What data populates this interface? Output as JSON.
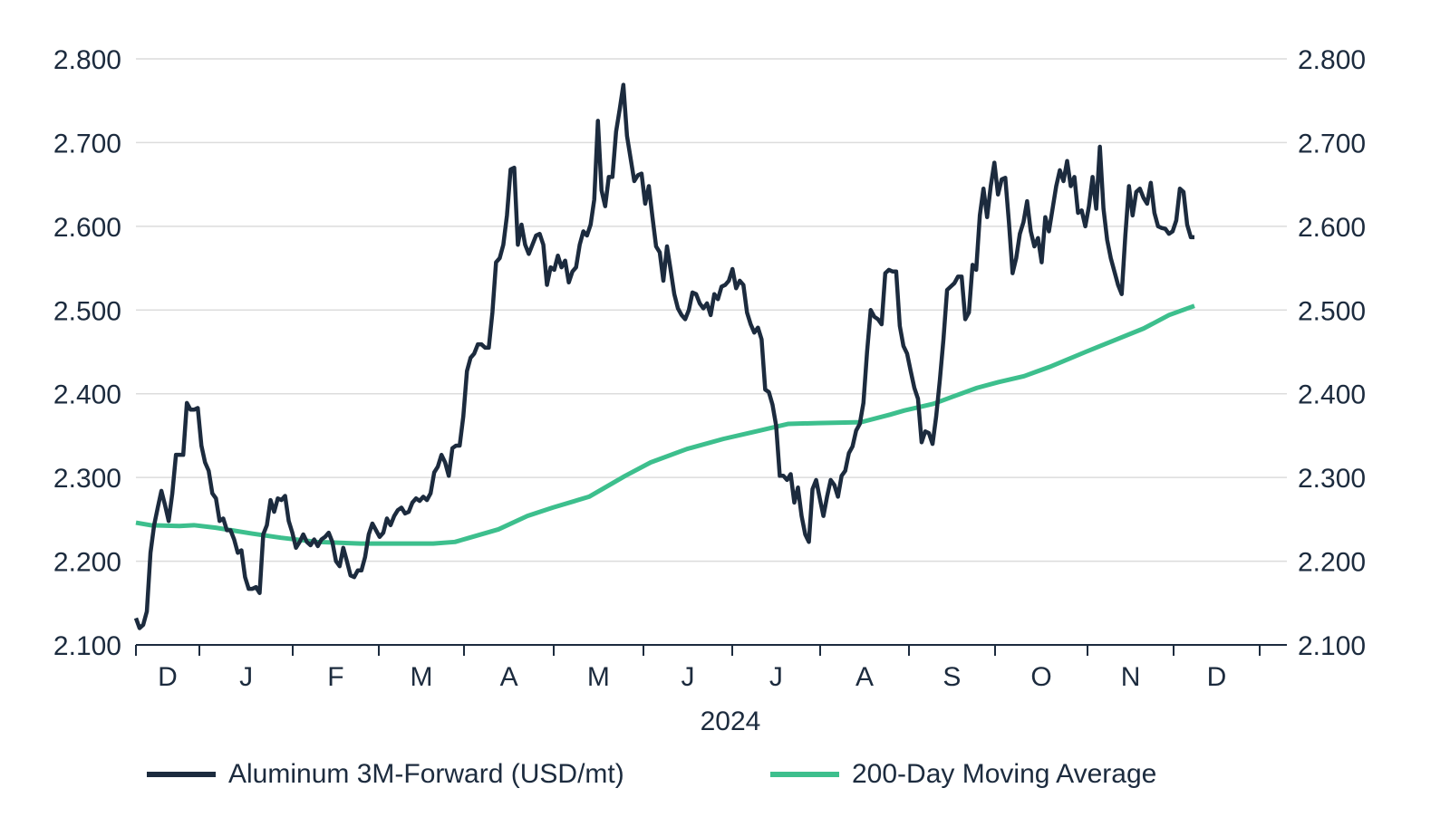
{
  "chart_data": {
    "type": "line",
    "title": "",
    "xlabel": "2024",
    "ylabel": "",
    "ylim": [
      2100,
      2800
    ],
    "y_ticks": [
      "2.100",
      "2.200",
      "2.300",
      "2.400",
      "2.500",
      "2.600",
      "2.700",
      "2.800"
    ],
    "y_tick_values": [
      2100,
      2200,
      2300,
      2400,
      2500,
      2600,
      2700,
      2800
    ],
    "x_unit": "approx. trading-day index from chart start",
    "xlim": [
      0,
      310
    ],
    "x_ticks": [
      17.5,
      43.25,
      67,
      90.5,
      115.25,
      140,
      164.5,
      188.75,
      213.25,
      237,
      262.5,
      286.25,
      310
    ],
    "x_tick_labels": [
      "D",
      "J",
      "F",
      "M",
      "A",
      "M",
      "J",
      "J",
      "A",
      "S",
      "O",
      "N",
      "D"
    ],
    "x_label_positions": [
      8.75,
      30.4,
      55.1,
      78.75,
      102.9,
      127.6,
      152.25,
      176.6,
      201,
      225.1,
      249.75,
      274.4,
      298.1
    ],
    "grid": true,
    "legend_position": "bottom",
    "series": [
      {
        "name": "Aluminum 3M-Forward (USD/mt)",
        "color": "#1c2b3e",
        "x_range": [
          0,
          292
        ],
        "values": [
          2132,
          2120,
          2124,
          2140,
          2210,
          2243,
          2264,
          2284,
          2267,
          2248,
          2281,
          2327,
          2327,
          2327,
          2389,
          2381,
          2381,
          2383,
          2338,
          2318,
          2308,
          2281,
          2275,
          2248,
          2251,
          2237,
          2237,
          2226,
          2210,
          2213,
          2181,
          2167,
          2167,
          2169,
          2162,
          2232,
          2243,
          2273,
          2259,
          2275,
          2273,
          2278,
          2248,
          2234,
          2216,
          2223,
          2232,
          2223,
          2219,
          2226,
          2218,
          2226,
          2229,
          2234,
          2223,
          2200,
          2194,
          2216,
          2200,
          2183,
          2181,
          2189,
          2189,
          2205,
          2232,
          2245,
          2237,
          2229,
          2234,
          2251,
          2243,
          2254,
          2261,
          2264,
          2257,
          2259,
          2270,
          2275,
          2272,
          2277,
          2273,
          2281,
          2306,
          2313,
          2327,
          2318,
          2302,
          2335,
          2338,
          2338,
          2373,
          2427,
          2443,
          2448,
          2459,
          2459,
          2455,
          2455,
          2497,
          2557,
          2562,
          2578,
          2613,
          2668,
          2670,
          2578,
          2602,
          2578,
          2567,
          2578,
          2589,
          2591,
          2578,
          2530,
          2551,
          2548,
          2565,
          2551,
          2559,
          2533,
          2546,
          2551,
          2578,
          2594,
          2589,
          2602,
          2632,
          2726,
          2643,
          2624,
          2659,
          2659,
          2713,
          2740,
          2769,
          2708,
          2681,
          2654,
          2661,
          2663,
          2627,
          2648,
          2611,
          2576,
          2569,
          2535,
          2576,
          2548,
          2519,
          2502,
          2494,
          2489,
          2500,
          2521,
          2519,
          2508,
          2502,
          2508,
          2494,
          2519,
          2513,
          2528,
          2530,
          2535,
          2549,
          2526,
          2535,
          2530,
          2497,
          2483,
          2473,
          2479,
          2465,
          2405,
          2402,
          2387,
          2362,
          2302,
          2302,
          2297,
          2304,
          2270,
          2288,
          2254,
          2232,
          2223,
          2286,
          2297,
          2275,
          2254,
          2277,
          2297,
          2291,
          2277,
          2302,
          2308,
          2329,
          2337,
          2356,
          2364,
          2389,
          2450,
          2500,
          2492,
          2489,
          2483,
          2544,
          2548,
          2546,
          2546,
          2481,
          2457,
          2448,
          2427,
          2407,
          2394,
          2342,
          2355,
          2353,
          2340,
          2373,
          2416,
          2465,
          2524,
          2528,
          2532,
          2540,
          2540,
          2489,
          2497,
          2554,
          2548,
          2613,
          2645,
          2611,
          2648,
          2676,
          2638,
          2656,
          2658,
          2605,
          2544,
          2562,
          2591,
          2605,
          2630,
          2594,
          2576,
          2586,
          2557,
          2611,
          2594,
          2621,
          2648,
          2667,
          2654,
          2678,
          2648,
          2659,
          2616,
          2619,
          2600,
          2624,
          2659,
          2621,
          2695,
          2621,
          2584,
          2562,
          2546,
          2530,
          2519,
          2589,
          2648,
          2613,
          2641,
          2645,
          2634,
          2627,
          2652,
          2616,
          2600,
          2598,
          2597,
          2591,
          2594,
          2607,
          2645,
          2641,
          2602,
          2587,
          2587
        ]
      },
      {
        "name": "200-Day Moving Average",
        "color": "#3dbf8d",
        "points": [
          [
            0,
            2246
          ],
          [
            4,
            2243
          ],
          [
            12,
            2242
          ],
          [
            16,
            2243
          ],
          [
            22,
            2240
          ],
          [
            32,
            2233
          ],
          [
            40,
            2228
          ],
          [
            50,
            2223
          ],
          [
            62,
            2221
          ],
          [
            82,
            2221
          ],
          [
            88,
            2223
          ],
          [
            92,
            2228
          ],
          [
            100,
            2238
          ],
          [
            108,
            2254
          ],
          [
            115,
            2264
          ],
          [
            125,
            2277
          ],
          [
            135,
            2302
          ],
          [
            142,
            2318
          ],
          [
            152,
            2334
          ],
          [
            162,
            2346
          ],
          [
            172,
            2356
          ],
          [
            180,
            2364
          ],
          [
            188,
            2365
          ],
          [
            200,
            2366
          ],
          [
            208,
            2375
          ],
          [
            212,
            2380
          ],
          [
            220,
            2388
          ],
          [
            225,
            2396
          ],
          [
            232,
            2407
          ],
          [
            238,
            2414
          ],
          [
            245,
            2421
          ],
          [
            252,
            2432
          ],
          [
            262,
            2450
          ],
          [
            270,
            2464
          ],
          [
            278,
            2478
          ],
          [
            285,
            2494
          ],
          [
            292,
            2505
          ]
        ]
      }
    ]
  }
}
